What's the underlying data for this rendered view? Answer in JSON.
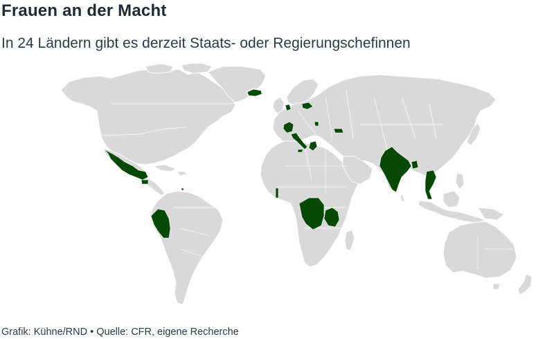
{
  "header": {
    "title": "Frauen an der Macht",
    "subtitle": "In 24 Ländern gibt es derzeit Staats- oder Regierungschefinnen"
  },
  "footer": {
    "credit": "Grafik: Kühne/RND • Quelle: CFR, eigene Recherche"
  },
  "colors": {
    "highlighted": "#064906",
    "land": "#d9d9d9",
    "borders": "#ffffff"
  },
  "map": {
    "projection": "world map",
    "highlighted_countries_count": 24
  }
}
